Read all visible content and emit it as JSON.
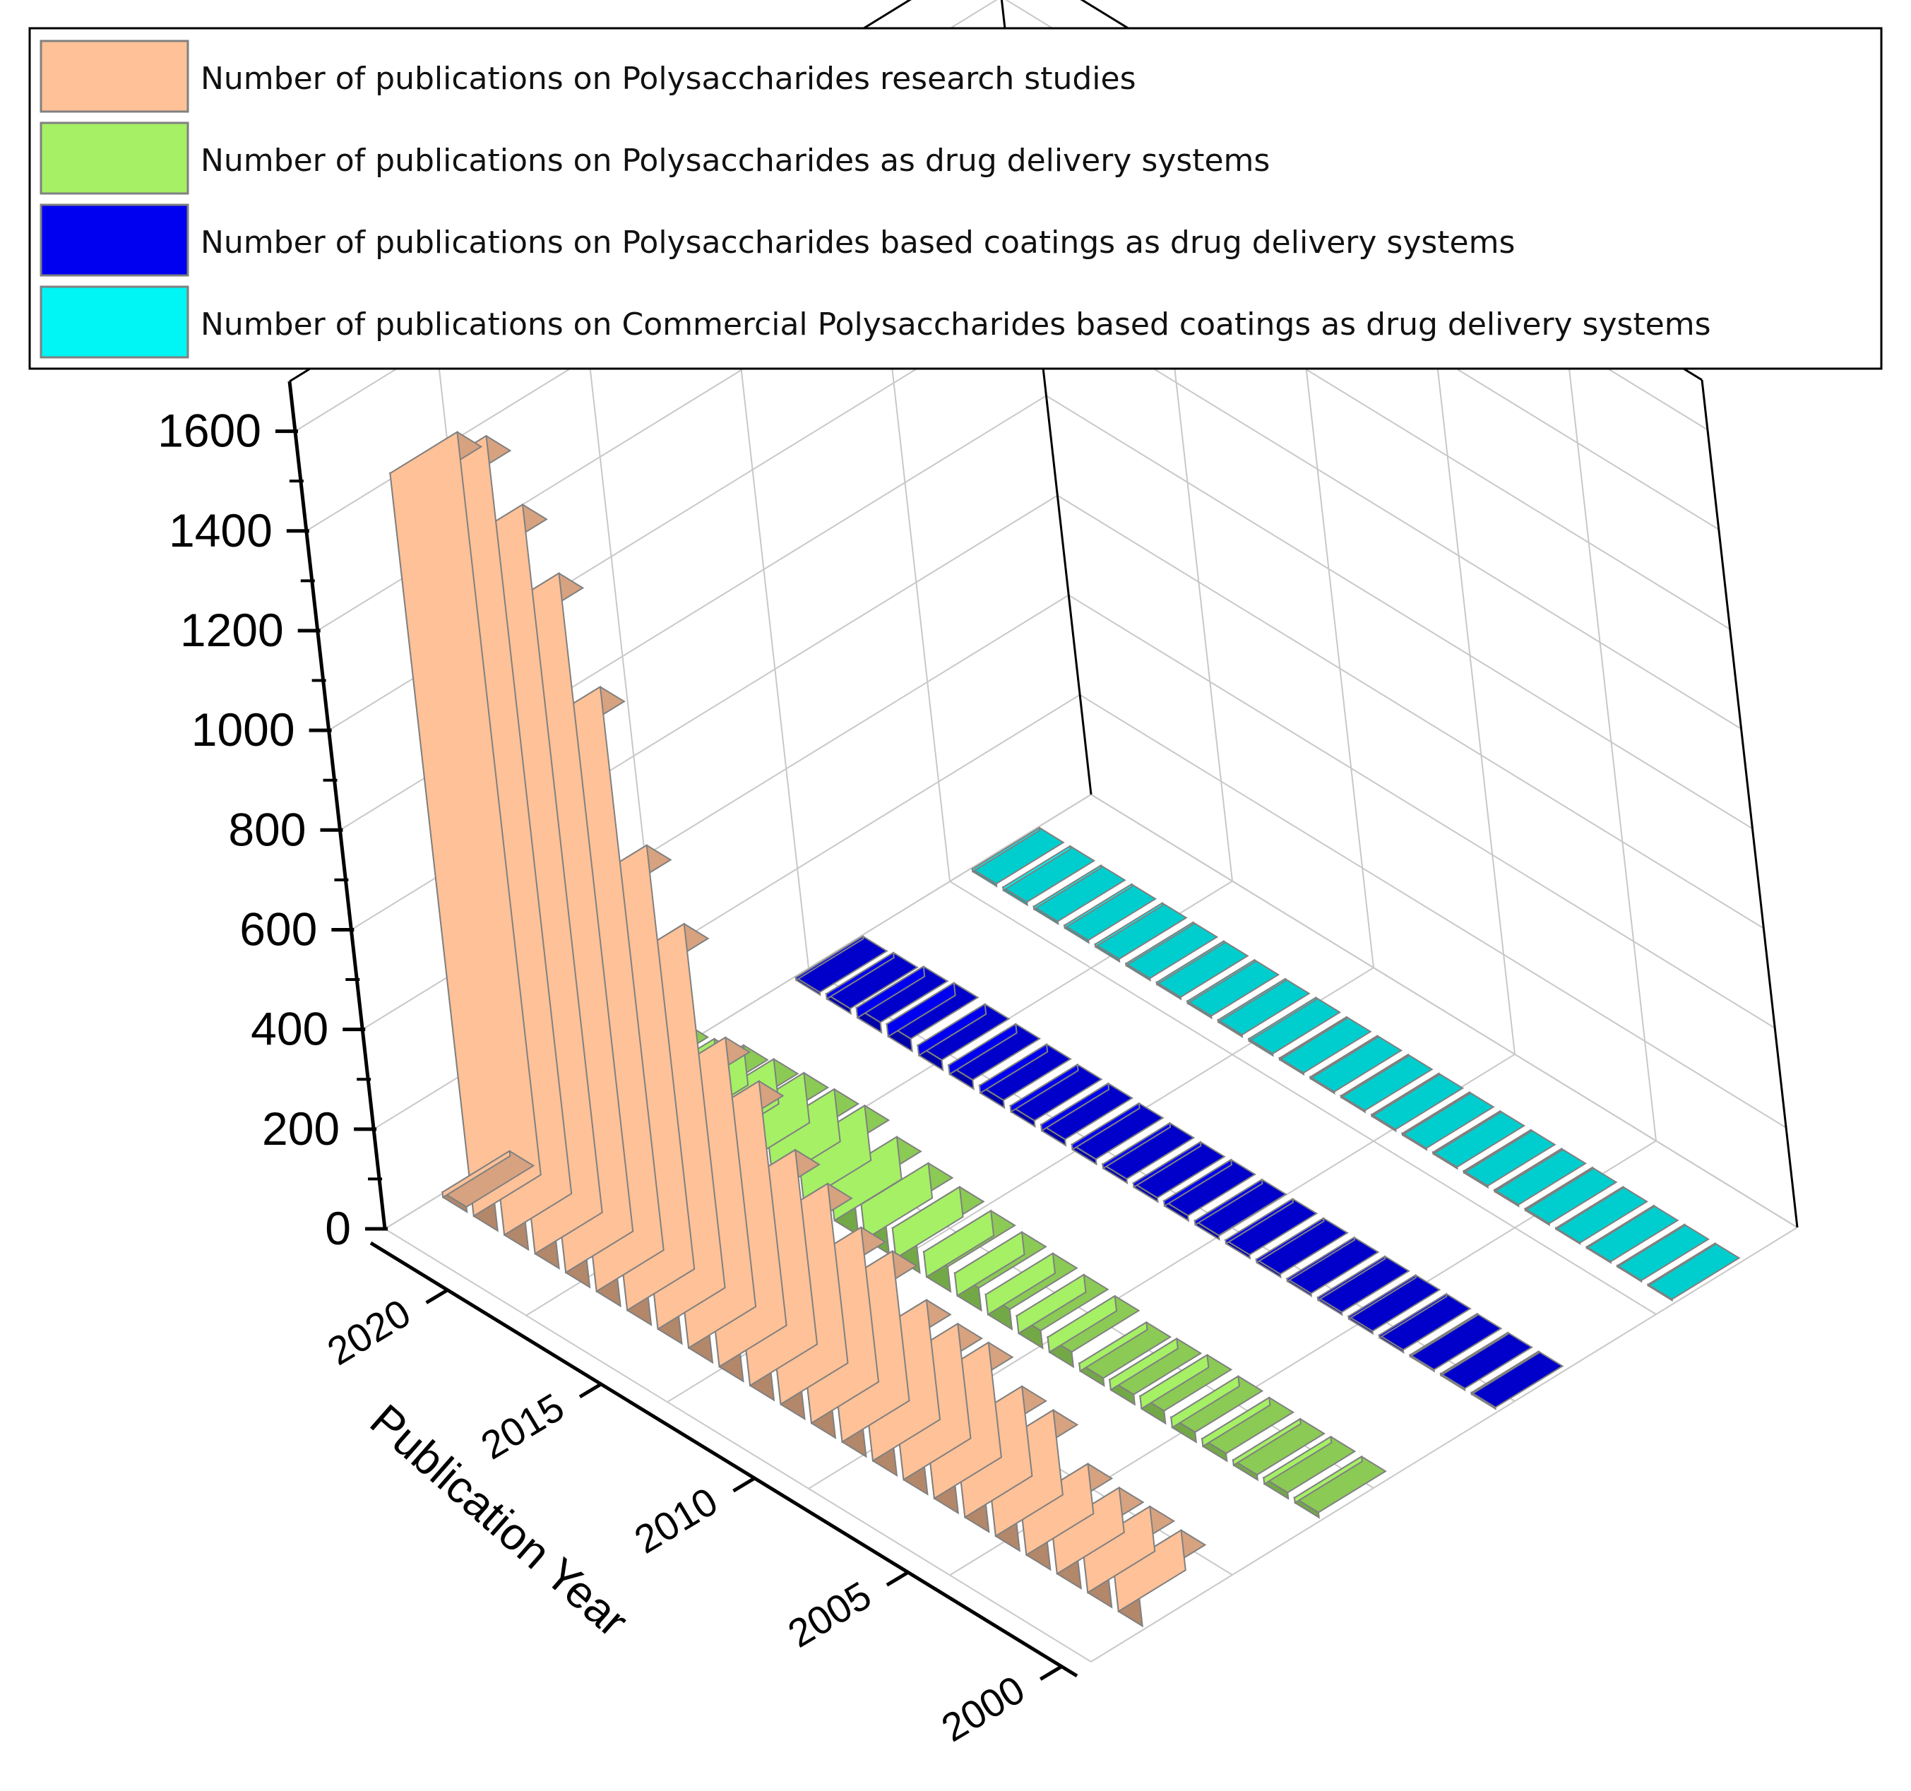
{
  "chart_data": {
    "type": "bar",
    "style": "3d-bar",
    "zlabel": "",
    "xlabel": "Publication Year",
    "zlim": [
      0,
      1700
    ],
    "ztick_labels": [
      "0",
      "200",
      "400",
      "600",
      "800",
      "1000",
      "1200",
      "1400",
      "1600"
    ],
    "year_tick_labels": [
      "2000",
      "2005",
      "2010",
      "2015",
      "2020"
    ],
    "grid": true,
    "legend_position": "top",
    "years": [
      2022,
      2021,
      2020,
      2019,
      2018,
      2017,
      2016,
      2015,
      2014,
      2013,
      2012,
      2011,
      2010,
      2009,
      2008,
      2007,
      2006,
      2005,
      2004,
      2003,
      2002,
      2001,
      2000
    ],
    "series": [
      {
        "name": "Number of publications on Polysaccharides research studies",
        "color": "#FFC197",
        "values": [
          10,
          1490,
          1520,
          1420,
          1320,
          1130,
          850,
          730,
          540,
          490,
          390,
          360,
          310,
          300,
          240,
          230,
          230,
          180,
          170,
          100,
          90,
          90,
          80
        ]
      },
      {
        "name": "Number of publications on Polysaccharides as drug delivery systems",
        "color": "#A5F065",
        "values": [
          50,
          55,
          80,
          90,
          100,
          105,
          110,
          85,
          70,
          60,
          50,
          45,
          40,
          35,
          30,
          15,
          20,
          25,
          20,
          15,
          10,
          12,
          10
        ]
      },
      {
        "name": "Number of publications on Polysaccharides based coatings as drug delivery systems",
        "color": "#0000F0",
        "values": [
          5,
          10,
          20,
          25,
          20,
          18,
          15,
          12,
          12,
          10,
          8,
          8,
          10,
          8,
          7,
          6,
          5,
          5,
          5,
          5,
          3,
          3,
          3
        ]
      },
      {
        "name": "Number of publications on Commercial Polysaccharides based coatings as drug delivery systems",
        "color": "#00F5F5",
        "values": [
          5,
          6,
          5,
          5,
          5,
          4,
          4,
          4,
          4,
          4,
          3,
          3,
          3,
          3,
          3,
          3,
          3,
          3,
          3,
          2,
          2,
          2,
          2
        ]
      }
    ]
  }
}
